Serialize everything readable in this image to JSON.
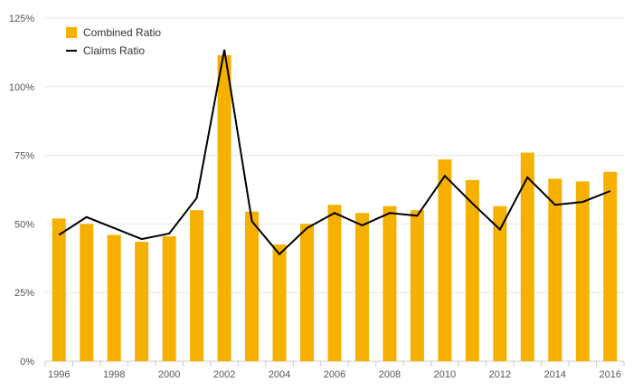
{
  "chart_data": {
    "type": "bar",
    "categories": [
      "1996",
      "1997",
      "1998",
      "1999",
      "2000",
      "2001",
      "2002",
      "2003",
      "2004",
      "2005",
      "2006",
      "2007",
      "2008",
      "2009",
      "2010",
      "2011",
      "2012",
      "2013",
      "2014",
      "2015",
      "2016"
    ],
    "x_tick_labels": [
      "1996",
      "1998",
      "2000",
      "2002",
      "2004",
      "2006",
      "2008",
      "2010",
      "2012",
      "2014",
      "2016"
    ],
    "y_ticks": [
      0,
      25,
      50,
      75,
      100,
      125
    ],
    "y_tick_labels": [
      "0%",
      "25%",
      "50%",
      "75%",
      "100%",
      "125%"
    ],
    "ylim": [
      0,
      125
    ],
    "grid": true,
    "legend_position": "top-left",
    "series": [
      {
        "name": "Combined Ratio",
        "type": "bar",
        "color": "#f5b000",
        "values": [
          52,
          50,
          46,
          43.5,
          45.5,
          55,
          111.5,
          54.5,
          42.5,
          50,
          57,
          54,
          56.5,
          55,
          73.5,
          66,
          56.5,
          76,
          66.5,
          65.5,
          69
        ]
      },
      {
        "name": "Claims Ratio",
        "type": "line",
        "color": "#000000",
        "values": [
          46,
          52.5,
          48.5,
          44.5,
          46.5,
          59.5,
          113.5,
          51,
          39,
          48.5,
          54,
          49.5,
          54,
          53,
          67.5,
          57.5,
          48,
          67,
          57,
          58,
          62
        ]
      }
    ]
  }
}
